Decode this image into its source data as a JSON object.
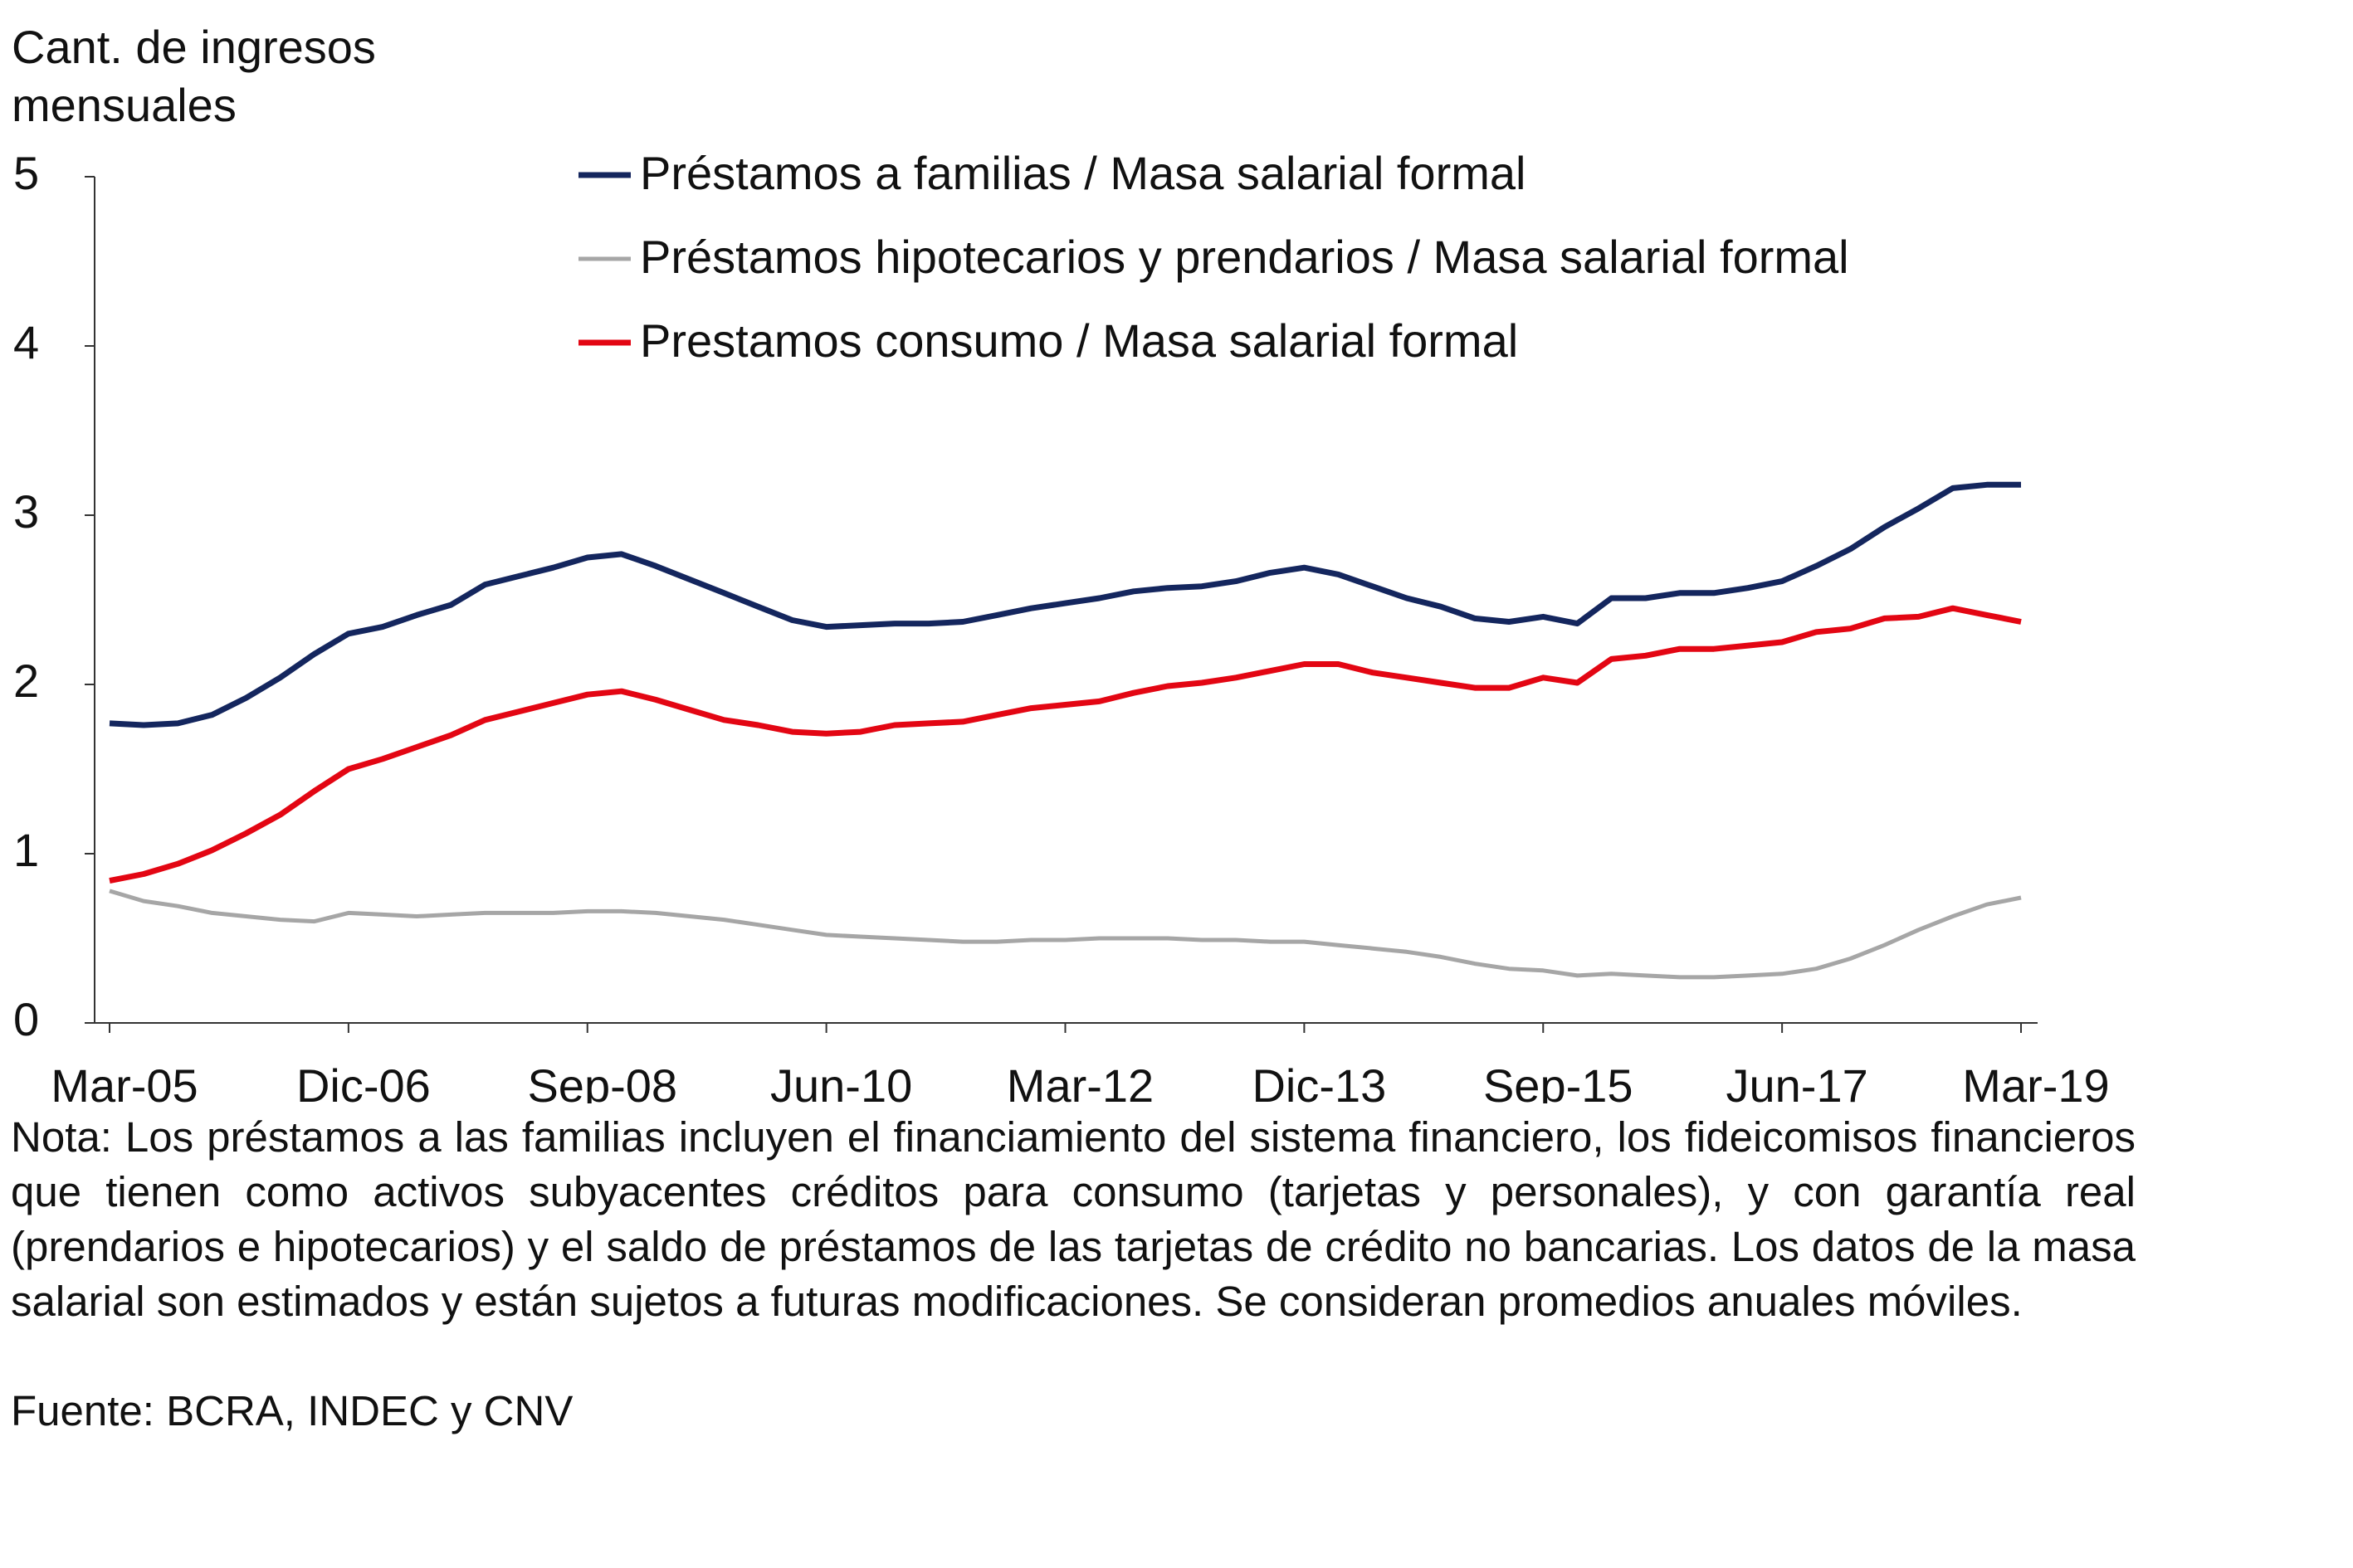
{
  "chart_data": {
    "type": "line",
    "y_label": "Cant. de ingresos mensuales",
    "categories": [
      "Mar-05",
      null,
      null,
      null,
      null,
      null,
      null,
      "Dic-06",
      null,
      null,
      null,
      null,
      null,
      null,
      "Sep-08",
      null,
      null,
      null,
      null,
      null,
      null,
      "Jun-10",
      null,
      null,
      null,
      null,
      null,
      null,
      "Mar-12",
      null,
      null,
      null,
      null,
      null,
      null,
      "Dic-13",
      null,
      null,
      null,
      null,
      null,
      null,
      "Sep-15",
      null,
      null,
      null,
      null,
      null,
      null,
      "Jun-17",
      null,
      null,
      null,
      null,
      null,
      null,
      "Mar-19"
    ],
    "series": [
      {
        "name": "Préstamos a familias / Masa salarial formal",
        "color": "#14265e",
        "values": [
          1.77,
          1.76,
          1.77,
          1.82,
          1.92,
          2.04,
          2.18,
          2.3,
          2.34,
          2.41,
          2.47,
          2.59,
          2.64,
          2.69,
          2.75,
          2.77,
          2.7,
          2.62,
          2.54,
          2.46,
          2.38,
          2.34,
          2.35,
          2.36,
          2.36,
          2.37,
          2.41,
          2.45,
          2.48,
          2.51,
          2.55,
          2.57,
          2.58,
          2.61,
          2.66,
          2.69,
          2.65,
          2.58,
          2.51,
          2.46,
          2.39,
          2.37,
          2.4,
          2.36,
          2.51,
          2.51,
          2.54,
          2.54,
          2.57,
          2.61,
          2.7,
          2.8,
          2.93,
          3.04,
          3.16,
          3.18,
          3.18
        ]
      },
      {
        "name": "Préstamos hipotecarios y prendarios / Masa salarial formal",
        "color": "#a6a6a6",
        "values": [
          0.78,
          0.72,
          0.69,
          0.65,
          0.63,
          0.61,
          0.6,
          0.65,
          0.64,
          0.63,
          0.64,
          0.65,
          0.65,
          0.65,
          0.66,
          0.66,
          0.65,
          0.63,
          0.61,
          0.58,
          0.55,
          0.52,
          0.51,
          0.5,
          0.49,
          0.48,
          0.48,
          0.49,
          0.49,
          0.5,
          0.5,
          0.5,
          0.49,
          0.49,
          0.48,
          0.48,
          0.46,
          0.44,
          0.42,
          0.39,
          0.35,
          0.32,
          0.31,
          0.28,
          0.29,
          0.28,
          0.27,
          0.27,
          0.28,
          0.29,
          0.32,
          0.38,
          0.46,
          0.55,
          0.63,
          0.7,
          0.74
        ]
      },
      {
        "name": "Prestamos consumo / Masa salarial formal",
        "color": "#e30613",
        "values": [
          0.84,
          0.88,
          0.94,
          1.02,
          1.12,
          1.23,
          1.37,
          1.5,
          1.56,
          1.63,
          1.7,
          1.79,
          1.84,
          1.89,
          1.94,
          1.96,
          1.91,
          1.85,
          1.79,
          1.76,
          1.72,
          1.71,
          1.72,
          1.76,
          1.77,
          1.78,
          1.82,
          1.86,
          1.88,
          1.9,
          1.95,
          1.99,
          2.01,
          2.04,
          2.08,
          2.12,
          2.12,
          2.07,
          2.04,
          2.01,
          1.98,
          1.98,
          2.04,
          2.01,
          2.15,
          2.17,
          2.21,
          2.21,
          2.23,
          2.25,
          2.31,
          2.33,
          2.39,
          2.4,
          2.45,
          2.41,
          2.37
        ]
      }
    ],
    "ylim": [
      0,
      5
    ],
    "yticks": [
      0,
      1,
      2,
      3,
      4,
      5
    ],
    "grid": false,
    "note": "Nota: Los préstamos a las familias incluyen el financiamiento del sistema financiero, los fideicomisos financieros que tienen como activos subyacentes créditos para consumo (tarjetas y personales), y con garantía real (prendarios e hipotecarios) y el saldo de préstamos de las tarjetas de crédito no bancarias. Los datos de la masa salarial son estimados y están sujetos a futuras modificaciones. Se consideran promedios anuales móviles.",
    "source": "Fuente: BCRA, INDEC y CNV"
  }
}
